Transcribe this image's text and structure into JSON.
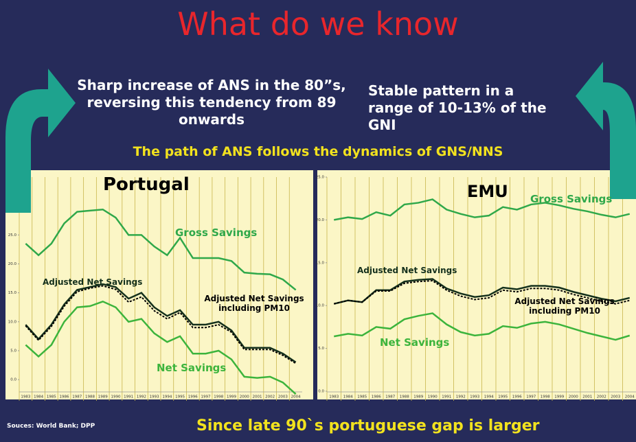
{
  "title": "What do we know",
  "left_note": "Sharp increase of ANS in the 80”s, reversing this tendency from 89 onwards",
  "right_note": "Stable pattern in a range of 10-13% of the GNI",
  "highlight": "The path of ANS follows the dynamics of GNS/NNS",
  "source": "Souces: World Bank; DPP",
  "conclusion": "Since late 90`s portuguese gap is larger",
  "chart_data": [
    {
      "type": "line",
      "title": "Portugal",
      "categories": [
        "1983",
        "1984",
        "1985",
        "1986",
        "1987",
        "1988",
        "1989",
        "1990",
        "1991",
        "1992",
        "1993",
        "1994",
        "1995",
        "1996",
        "1997",
        "1998",
        "1999",
        "2000",
        "2001",
        "2002",
        "2003",
        "2004"
      ],
      "ylim": [
        -2,
        35
      ],
      "yticks": [
        {
          "value": 0,
          "label": "0.0"
        },
        {
          "value": 5,
          "label": "5.0"
        },
        {
          "value": 10,
          "label": "10.0"
        },
        {
          "value": 15,
          "label": "15.0"
        },
        {
          "value": 20,
          "label": "20.0"
        },
        {
          "value": 25,
          "label": "25.0"
        }
      ],
      "series": [
        {
          "name": "Gross Savings",
          "color": "#2fa84a",
          "dash": false,
          "values": [
            23.5,
            21.5,
            23.5,
            27,
            29,
            29.2,
            29.4,
            28,
            25,
            25,
            23,
            21.5,
            24.5,
            21,
            21,
            21,
            20.5,
            18.5,
            18.3,
            18.2,
            17.3,
            15.5
          ]
        },
        {
          "name": "Adjusted Net Savings",
          "color": "#14301c",
          "dash": false,
          "values": [
            9.5,
            7,
            9.5,
            13,
            15.5,
            16,
            16.5,
            16,
            14,
            15,
            12.5,
            11,
            12,
            9.5,
            9.5,
            10,
            8.5,
            5.5,
            5.5,
            5.5,
            4.5,
            3
          ]
        },
        {
          "name": "Adjusted Net Savings including PM10",
          "color": "#000000",
          "dash": true,
          "values": [
            9.3,
            6.8,
            9.2,
            12.7,
            15.2,
            15.8,
            16.2,
            15.6,
            13.4,
            14.3,
            11.9,
            10.5,
            11.6,
            9,
            9,
            9.5,
            8.2,
            5.2,
            5.2,
            5.2,
            4.2,
            2.8
          ]
        },
        {
          "name": "Net Savings",
          "color": "#3cb43c",
          "dash": false,
          "values": [
            6,
            4,
            6,
            10,
            12.5,
            12.7,
            13.5,
            12.5,
            10,
            10.5,
            8,
            6.5,
            7.5,
            4.5,
            4.5,
            5,
            3.5,
            0.5,
            0.3,
            0.5,
            -0.5,
            -2.5
          ]
        }
      ]
    },
    {
      "type": "line",
      "title": "EMU",
      "categories": [
        "1983",
        "1984",
        "1985",
        "1986",
        "1987",
        "1988",
        "1989",
        "1990",
        "1991",
        "1992",
        "1993",
        "1994",
        "1995",
        "1996",
        "1997",
        "1998",
        "1999",
        "2000",
        "2001",
        "2002",
        "2003",
        "2004"
      ],
      "ylim": [
        0,
        25
      ],
      "yticks": [
        {
          "value": 0,
          "label": "0.0"
        },
        {
          "value": 5,
          "label": "5.0"
        },
        {
          "value": 10,
          "label": "10.0"
        },
        {
          "value": 15,
          "label": "15.0"
        },
        {
          "value": 20,
          "label": "20.0"
        },
        {
          "value": 25,
          "label": "25.0"
        }
      ],
      "series": [
        {
          "name": "Gross Savings",
          "color": "#2fa84a",
          "dash": false,
          "values": [
            20,
            20.3,
            20.1,
            20.9,
            20.5,
            21.8,
            22,
            22.4,
            21.2,
            20.7,
            20.3,
            20.5,
            21.5,
            21.2,
            21.8,
            22,
            21.7,
            21.3,
            21,
            20.6,
            20.3,
            20.7
          ]
        },
        {
          "name": "Adjusted Net Savings",
          "color": "#14301c",
          "dash": false,
          "values": [
            10.2,
            10.6,
            10.4,
            11.8,
            11.8,
            12.8,
            13,
            13.1,
            12,
            11.4,
            11,
            11.2,
            12.1,
            11.9,
            12.3,
            12.3,
            12.1,
            11.6,
            11.2,
            10.8,
            10.5,
            10.9
          ]
        },
        {
          "name": "Adjusted Net Savings including PM10",
          "color": "#000000",
          "dash": true,
          "values": [
            10.2,
            10.6,
            10.4,
            11.7,
            11.7,
            12.6,
            12.8,
            12.9,
            11.8,
            11.1,
            10.7,
            10.9,
            11.8,
            11.6,
            12,
            12,
            11.8,
            11.3,
            10.9,
            10.5,
            10.2,
            10.6
          ]
        },
        {
          "name": "Net Savings",
          "color": "#3cb43c",
          "dash": false,
          "values": [
            6.4,
            6.7,
            6.5,
            7.5,
            7.3,
            8.4,
            8.8,
            9.1,
            7.8,
            6.9,
            6.5,
            6.7,
            7.6,
            7.4,
            7.9,
            8.1,
            7.8,
            7.3,
            6.8,
            6.4,
            6,
            6.5
          ]
        }
      ]
    }
  ]
}
